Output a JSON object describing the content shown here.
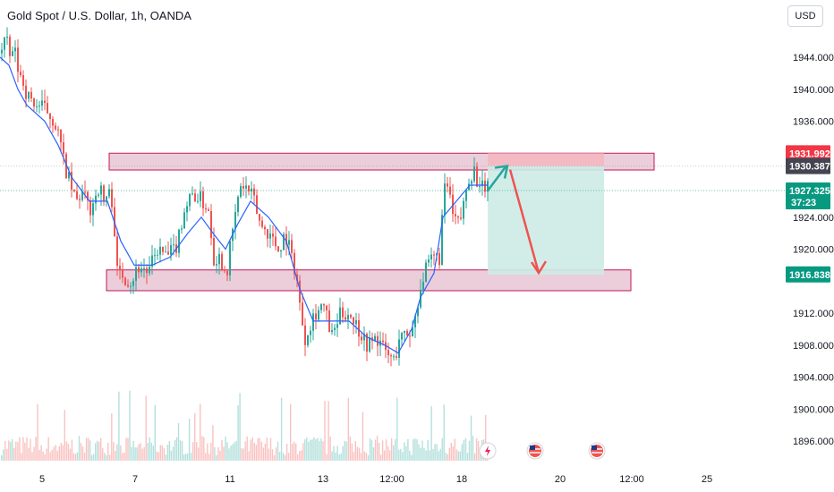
{
  "header": {
    "title": "Gold Spot / U.S. Dollar, 1h, OANDA",
    "currency_button": "USD"
  },
  "colors": {
    "up": "#26a69a",
    "down": "#ef5350",
    "ma": "#2962ff",
    "zone_fill": "#e8c6d4",
    "zone_stroke": "#c2185b",
    "profit_fill": "#cdebe5",
    "loss_fill": "#f4b8c0",
    "arrow_teal": "#26a69a",
    "arrow_red": "#ef5350",
    "tag_red": "#f23645",
    "tag_gray": "#434651",
    "tag_green": "#089981"
  },
  "event_icons": [
    "lightning-icon",
    "us-flag-icon",
    "us-flag-icon"
  ],
  "chart_data": {
    "type": "candlestick",
    "title": "Gold Spot / U.S. Dollar, 1h, OANDA",
    "y_axis": {
      "ticks": [
        "1944.000",
        "1940.000",
        "1936.000",
        "1924.000",
        "1920.000",
        "1912.000",
        "1908.000",
        "1904.000",
        "1900.000",
        "1896.000"
      ],
      "tick_values": [
        1944,
        1940,
        1936,
        1924,
        1920,
        1912,
        1908,
        1904,
        1900,
        1896
      ],
      "ylim": [
        1894.8,
        1947.4
      ]
    },
    "x_axis": {
      "ticks": [
        "5",
        "7",
        "11",
        "13",
        "12:00",
        "18",
        "20",
        "12:00",
        "25"
      ]
    },
    "price_tags": [
      {
        "label": "1931.992",
        "value": 1931.992,
        "color": "tag_red"
      },
      {
        "label": "1930.387",
        "value": 1930.387,
        "color": "tag_gray"
      },
      {
        "label": "1927.325",
        "sub": "37:23",
        "value": 1927.325,
        "color": "tag_green"
      },
      {
        "label": "1916.838",
        "value": 1916.838,
        "color": "tag_green"
      }
    ],
    "zones": [
      {
        "name": "resistance",
        "from": 1929.9,
        "to": 1932.0
      },
      {
        "name": "support",
        "from": 1914.8,
        "to": 1917.4
      }
    ],
    "candles_path": [
      [
        0,
        1944.5
      ],
      [
        5,
        1946.5
      ],
      [
        10,
        1944
      ],
      [
        15,
        1945
      ],
      [
        20,
        1942
      ],
      [
        25,
        1941
      ],
      [
        30,
        1939
      ],
      [
        40,
        1938
      ],
      [
        50,
        1937.5
      ],
      [
        60,
        1936
      ],
      [
        65,
        1934
      ],
      [
        70,
        1931
      ],
      [
        75,
        1929
      ],
      [
        80,
        1927
      ],
      [
        85,
        1926
      ],
      [
        90,
        1927
      ],
      [
        100,
        1925
      ],
      [
        110,
        1928
      ],
      [
        115,
        1926
      ],
      [
        120,
        1927
      ],
      [
        125,
        1926
      ],
      [
        130,
        1917
      ],
      [
        135,
        1917
      ],
      [
        145,
        1916
      ],
      [
        155,
        1918
      ],
      [
        165,
        1917
      ],
      [
        175,
        1920
      ],
      [
        185,
        1919
      ],
      [
        195,
        1920
      ],
      [
        205,
        1925
      ],
      [
        215,
        1927
      ],
      [
        225,
        1926
      ],
      [
        232,
        1925
      ],
      [
        238,
        1919
      ],
      [
        245,
        1919
      ],
      [
        252,
        1917
      ],
      [
        260,
        1923
      ],
      [
        268,
        1928
      ],
      [
        275,
        1927.5
      ],
      [
        283,
        1926
      ],
      [
        290,
        1923
      ],
      [
        300,
        1922
      ],
      [
        310,
        1920
      ],
      [
        318,
        1922
      ],
      [
        325,
        1919
      ],
      [
        330,
        1917
      ],
      [
        335,
        1912
      ],
      [
        340,
        1909
      ],
      [
        350,
        1912
      ],
      [
        360,
        1913
      ],
      [
        370,
        1909
      ],
      [
        380,
        1912
      ],
      [
        390,
        1912
      ],
      [
        400,
        1910
      ],
      [
        410,
        1908
      ],
      [
        420,
        1909
      ],
      [
        430,
        1907
      ],
      [
        440,
        1906
      ],
      [
        445,
        1909
      ],
      [
        450,
        1909
      ],
      [
        460,
        1910
      ],
      [
        465,
        1913
      ],
      [
        470,
        1916
      ],
      [
        478,
        1918
      ],
      [
        485,
        1919
      ],
      [
        490,
        1919
      ],
      [
        495,
        1927
      ],
      [
        500,
        1928
      ],
      [
        505,
        1924
      ],
      [
        512,
        1923
      ],
      [
        518,
        1926
      ],
      [
        522,
        1929
      ],
      [
        530,
        1930
      ],
      [
        535,
        1927
      ],
      [
        540,
        1928
      ],
      [
        545,
        1927.3
      ]
    ],
    "ma_line": [
      [
        0,
        1944
      ],
      [
        10,
        1943
      ],
      [
        20,
        1940
      ],
      [
        30,
        1938
      ],
      [
        50,
        1936
      ],
      [
        65,
        1933
      ],
      [
        80,
        1929
      ],
      [
        100,
        1926
      ],
      [
        120,
        1926
      ],
      [
        135,
        1921
      ],
      [
        150,
        1918
      ],
      [
        170,
        1918
      ],
      [
        190,
        1919
      ],
      [
        210,
        1922
      ],
      [
        225,
        1924
      ],
      [
        238,
        1922
      ],
      [
        252,
        1920
      ],
      [
        265,
        1923
      ],
      [
        280,
        1926
      ],
      [
        300,
        1924
      ],
      [
        320,
        1921
      ],
      [
        335,
        1915
      ],
      [
        350,
        1911
      ],
      [
        370,
        1911
      ],
      [
        390,
        1911
      ],
      [
        410,
        1909
      ],
      [
        430,
        1908
      ],
      [
        445,
        1907
      ],
      [
        460,
        1910
      ],
      [
        470,
        1914
      ],
      [
        485,
        1917
      ],
      [
        495,
        1924
      ],
      [
        510,
        1926
      ],
      [
        525,
        1928
      ],
      [
        545,
        1928
      ]
    ],
    "volume_count": 270,
    "projection": {
      "entry": 1927.3,
      "peak": 1930.4,
      "target": 1916.8,
      "start_time": 545,
      "peak_time": 567,
      "end_time": 675
    }
  }
}
